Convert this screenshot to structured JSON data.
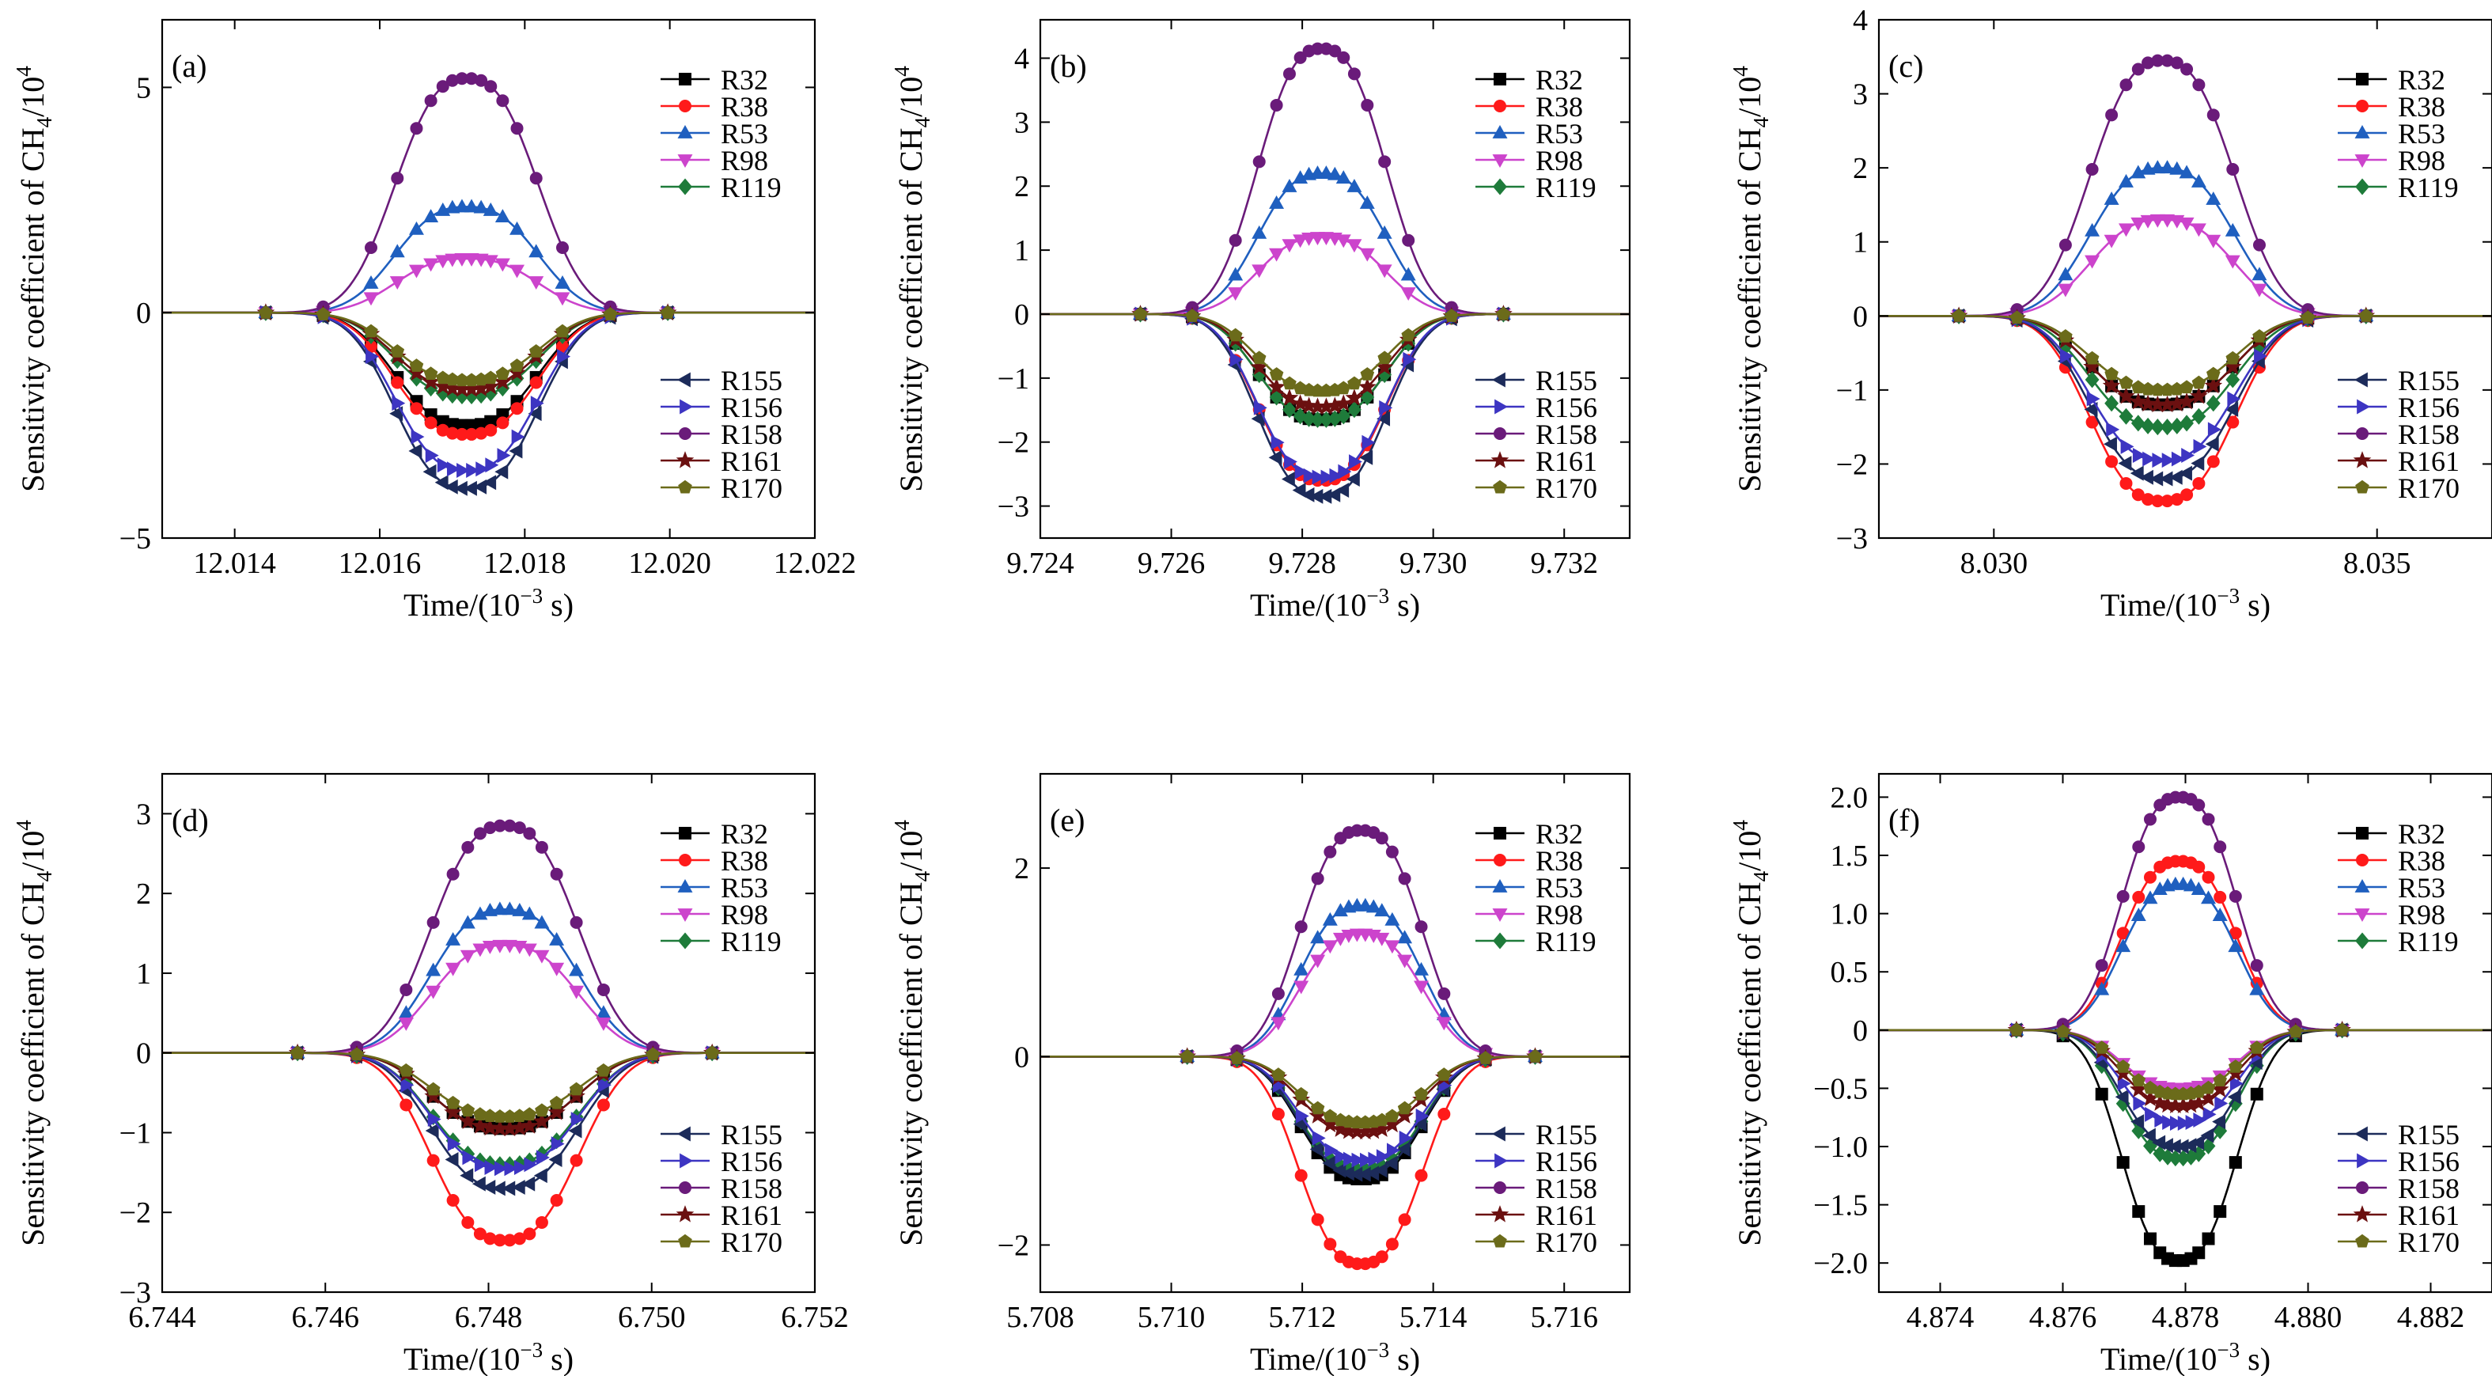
{
  "figure": {
    "ylabel": "Sensitivity coefficient of CH4/10^4",
    "ylabel_main": "Sensitivity coefficient of CH",
    "ylabel_sub": "4",
    "ylabel_after": "/10",
    "ylabel_sup": "4",
    "xlabel": "Time/(10^-3 s)",
    "xlabel_main": "Time/(10",
    "xlabel_sup": "−3",
    "xlabel_after": " s)"
  },
  "series_styles": {
    "R32": {
      "color": "#000000",
      "marker": "square"
    },
    "R38": {
      "color": "#ff1a1a",
      "marker": "circle"
    },
    "R53": {
      "color": "#1f5fbf",
      "marker": "triangle-up"
    },
    "R98": {
      "color": "#cc44cc",
      "marker": "triangle-down"
    },
    "R119": {
      "color": "#1e7b3a",
      "marker": "diamond"
    },
    "R155": {
      "color": "#1c2b5a",
      "marker": "triangle-left"
    },
    "R156": {
      "color": "#3d35c2",
      "marker": "triangle-right"
    },
    "R158": {
      "color": "#6a1b7a",
      "marker": "circle"
    },
    "R161": {
      "color": "#6b1010",
      "marker": "star"
    },
    "R170": {
      "color": "#6b6b1a",
      "marker": "pentagon"
    }
  },
  "chart_data": [
    {
      "type": "line",
      "panel_label": "(a)",
      "xlim": [
        12.013,
        12.022
      ],
      "ylim": [
        -5,
        6.5
      ],
      "xticks": [
        12.014,
        12.016,
        12.018,
        12.02,
        12.022
      ],
      "xtick_labels": [
        "12.014",
        "12.016",
        "12.018",
        "12.020",
        "12.022"
      ],
      "yticks": [
        -5,
        0,
        5
      ],
      "ytick_labels": [
        "−5",
        "0",
        "5"
      ],
      "t0": 12.0172,
      "half_width": 0.0012,
      "peaks": {
        "R32": -2.5,
        "R38": -2.7,
        "R53": 2.35,
        "R98": 1.2,
        "R119": -1.85,
        "R155": -3.9,
        "R156": -3.5,
        "R158": 5.2,
        "R161": -1.7,
        "R170": -1.5
      },
      "legend_top": [
        "R32",
        "R38",
        "R53",
        "R98",
        "R119"
      ],
      "legend_bottom": [
        "R155",
        "R156",
        "R158",
        "R161",
        "R170"
      ]
    },
    {
      "type": "line",
      "panel_label": "(b)",
      "xlim": [
        9.724,
        9.733
      ],
      "ylim": [
        -3.5,
        4.6
      ],
      "xticks": [
        9.724,
        9.726,
        9.728,
        9.73,
        9.732
      ],
      "xtick_labels": [
        "9.724",
        "9.726",
        "9.728",
        "9.730",
        "9.732"
      ],
      "yticks": [
        -3,
        -2,
        -1,
        0,
        1,
        2,
        3,
        4
      ],
      "ytick_labels": [
        "−3",
        "−2",
        "−1",
        "0",
        "1",
        "2",
        "3",
        "4"
      ],
      "t0": 9.7283,
      "half_width": 0.0012,
      "peaks": {
        "R32": -1.65,
        "R38": -2.6,
        "R53": 2.2,
        "R98": 1.2,
        "R119": -1.65,
        "R155": -2.85,
        "R156": -2.55,
        "R158": 4.15,
        "R161": -1.45,
        "R170": -1.2
      },
      "legend_top": [
        "R32",
        "R38",
        "R53",
        "R98",
        "R119"
      ],
      "legend_bottom": [
        "R155",
        "R156",
        "R158",
        "R161",
        "R170"
      ]
    },
    {
      "type": "line",
      "panel_label": "(c)",
      "xlim": [
        8.0285,
        8.0365
      ],
      "ylim": [
        -3,
        4
      ],
      "xticks": [
        8.03,
        8.035
      ],
      "xtick_labels": [
        "8.030",
        "8.035"
      ],
      "yticks": [
        -3,
        -2,
        -1,
        0,
        1,
        2,
        3,
        4
      ],
      "ytick_labels": [
        "−3",
        "−2",
        "−1",
        "0",
        "1",
        "2",
        "3",
        "4"
      ],
      "t0": 8.0322,
      "half_width": 0.00115,
      "peaks": {
        "R32": -1.2,
        "R38": -2.5,
        "R53": 2.0,
        "R98": 1.3,
        "R119": -1.5,
        "R155": -2.2,
        "R156": -1.95,
        "R158": 3.45,
        "R161": -1.2,
        "R170": -1.0
      },
      "legend_top": [
        "R32",
        "R38",
        "R53",
        "R98",
        "R119"
      ],
      "legend_bottom": [
        "R155",
        "R156",
        "R158",
        "R161",
        "R170"
      ]
    },
    {
      "type": "line",
      "panel_label": "(d)",
      "xlim": [
        6.744,
        6.752
      ],
      "ylim": [
        -3,
        3.5
      ],
      "xticks": [
        6.744,
        6.746,
        6.748,
        6.75,
        6.752
      ],
      "xtick_labels": [
        "6.744",
        "6.746",
        "6.748",
        "6.750",
        "6.752"
      ],
      "yticks": [
        -3,
        -2,
        -1,
        0,
        1,
        2,
        3
      ],
      "ytick_labels": [
        "−3",
        "−2",
        "−1",
        "0",
        "1",
        "2",
        "3"
      ],
      "t0": 6.7482,
      "half_width": 0.0011,
      "peaks": {
        "R32": -0.95,
        "R38": -2.35,
        "R53": 1.8,
        "R98": 1.35,
        "R119": -1.4,
        "R155": -1.7,
        "R156": -1.45,
        "R158": 2.85,
        "R161": -0.95,
        "R170": -0.8
      },
      "legend_top": [
        "R32",
        "R38",
        "R53",
        "R98",
        "R119"
      ],
      "legend_bottom": [
        "R155",
        "R156",
        "R158",
        "R161",
        "R170"
      ]
    },
    {
      "type": "line",
      "panel_label": "(e)",
      "xlim": [
        5.708,
        5.717
      ],
      "ylim": [
        -2.5,
        3
      ],
      "xticks": [
        5.708,
        5.71,
        5.712,
        5.714,
        5.716
      ],
      "xtick_labels": [
        "5.708",
        "5.710",
        "5.712",
        "5.714",
        "5.716"
      ],
      "yticks": [
        -2,
        0,
        2
      ],
      "ytick_labels": [
        "−2",
        "0",
        "2"
      ],
      "t0": 5.7129,
      "half_width": 0.00115,
      "peaks": {
        "R32": -1.3,
        "R38": -2.2,
        "R53": 1.6,
        "R98": 1.3,
        "R119": -1.2,
        "R155": -1.25,
        "R156": -1.1,
        "R158": 2.4,
        "R161": -0.8,
        "R170": -0.7
      },
      "legend_top": [
        "R32",
        "R38",
        "R53",
        "R98",
        "R119"
      ],
      "legend_bottom": [
        "R155",
        "R156",
        "R158",
        "R161",
        "R170"
      ]
    },
    {
      "type": "line",
      "panel_label": "(f)",
      "xlim": [
        4.873,
        4.883
      ],
      "ylim": [
        -2.25,
        2.2
      ],
      "xticks": [
        4.874,
        4.876,
        4.878,
        4.88,
        4.882
      ],
      "xtick_labels": [
        "4.874",
        "4.876",
        "4.878",
        "4.880",
        "4.882"
      ],
      "yticks": [
        -2.0,
        -1.5,
        -1.0,
        -0.5,
        0,
        0.5,
        1.0,
        1.5,
        2.0
      ],
      "ytick_labels": [
        "−2.0",
        "−1.5",
        "−1.0",
        "−0.5",
        "0",
        "0.5",
        "1.0",
        "1.5",
        "2.0"
      ],
      "t0": 4.8779,
      "half_width": 0.00115,
      "peaks": {
        "R32": -1.98,
        "R38": 1.45,
        "R53": 1.25,
        "R98": -0.5,
        "R119": -1.1,
        "R155": -1.0,
        "R156": -0.8,
        "R158": 2.0,
        "R161": -0.65,
        "R170": -0.55
      },
      "legend_top": [
        "R32",
        "R38",
        "R53",
        "R98",
        "R119"
      ],
      "legend_bottom": [
        "R155",
        "R156",
        "R158",
        "R161",
        "R170"
      ]
    }
  ]
}
